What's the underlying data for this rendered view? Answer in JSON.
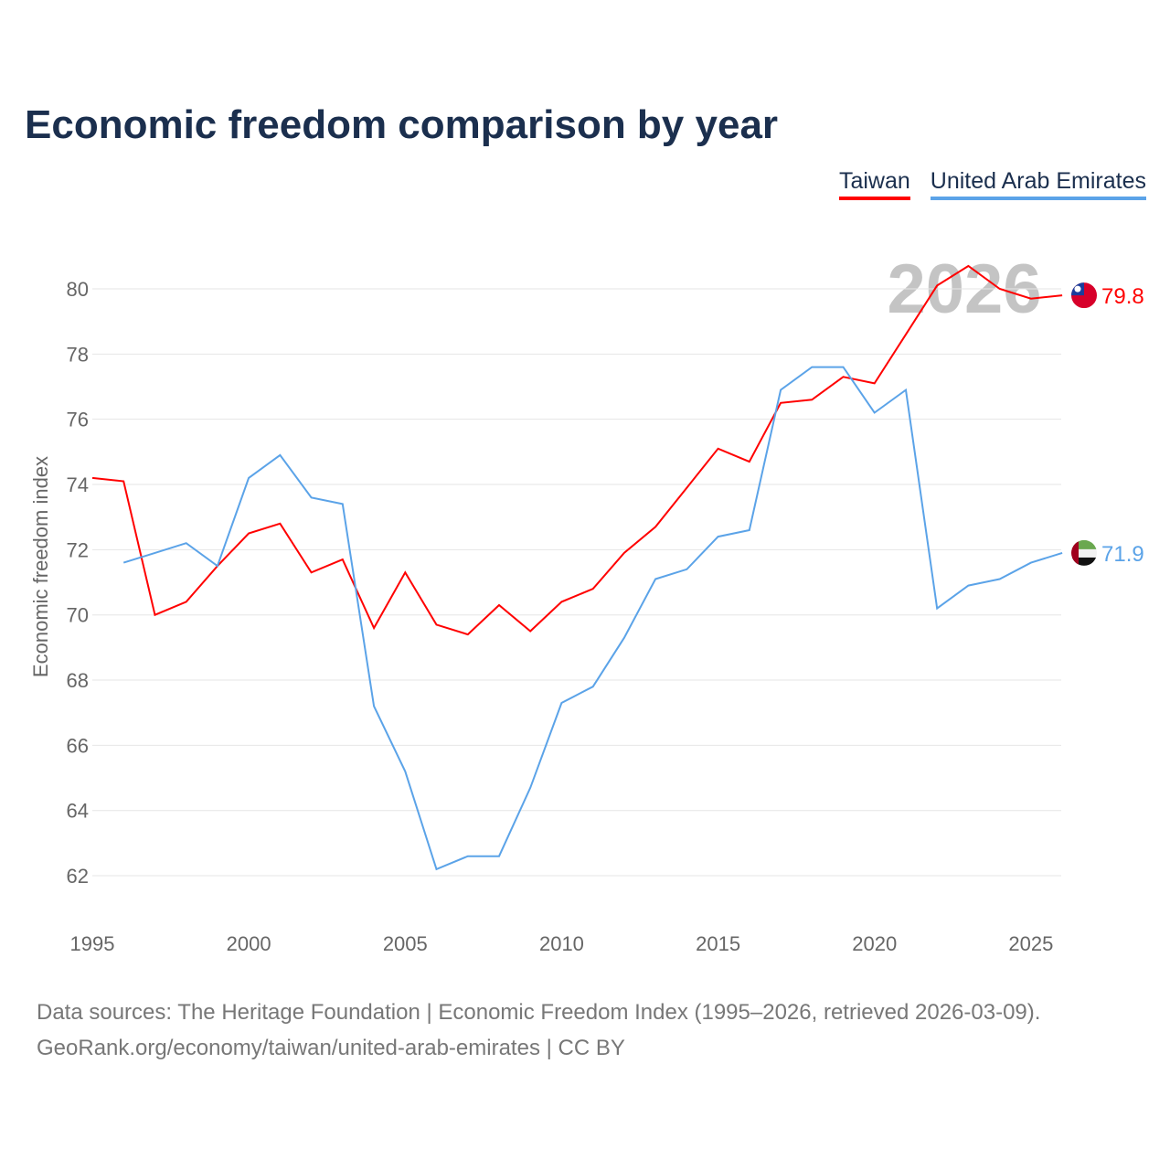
{
  "chart_data": {
    "type": "line",
    "title": "Economic freedom comparison by year",
    "ylabel": "Economic freedom index",
    "xlabel": "",
    "ylim": [
      61,
      81
    ],
    "xlim": [
      1995,
      2026
    ],
    "yticks": [
      62,
      64,
      66,
      68,
      70,
      72,
      74,
      76,
      78,
      80
    ],
    "xticks": [
      1995,
      2000,
      2005,
      2010,
      2015,
      2020,
      2025
    ],
    "grid": true,
    "legend_placement": "top-right",
    "year_label": "2026",
    "series": [
      {
        "name": "Taiwan",
        "color": "#ff0000",
        "end_label": "79.8",
        "x": [
          1995,
          1996,
          1997,
          1998,
          1999,
          2000,
          2001,
          2002,
          2003,
          2004,
          2005,
          2006,
          2007,
          2008,
          2009,
          2010,
          2011,
          2012,
          2013,
          2014,
          2015,
          2016,
          2017,
          2018,
          2019,
          2020,
          2021,
          2022,
          2023,
          2024,
          2025,
          2026
        ],
        "values": [
          74.2,
          74.1,
          70.0,
          70.4,
          71.5,
          72.5,
          72.8,
          71.3,
          71.7,
          69.6,
          71.3,
          69.7,
          69.4,
          70.3,
          69.5,
          70.4,
          70.8,
          71.9,
          72.7,
          73.9,
          75.1,
          74.7,
          76.5,
          76.6,
          77.3,
          77.1,
          78.6,
          80.1,
          80.7,
          80.0,
          79.7,
          79.8
        ]
      },
      {
        "name": "United Arab Emirates",
        "color": "#5ba3e8",
        "end_label": "71.9",
        "x": [
          1996,
          1997,
          1998,
          1999,
          2000,
          2001,
          2002,
          2003,
          2004,
          2005,
          2006,
          2007,
          2008,
          2009,
          2010,
          2011,
          2012,
          2013,
          2014,
          2015,
          2016,
          2017,
          2018,
          2019,
          2020,
          2021,
          2022,
          2023,
          2024,
          2025,
          2026
        ],
        "values": [
          71.6,
          71.9,
          72.2,
          71.5,
          74.2,
          74.9,
          73.6,
          73.4,
          67.2,
          65.2,
          62.2,
          62.6,
          62.6,
          64.7,
          67.3,
          67.8,
          69.3,
          71.1,
          71.4,
          72.4,
          72.6,
          76.9,
          77.6,
          77.6,
          76.2,
          76.9,
          70.2,
          70.9,
          71.1,
          71.6,
          71.9
        ]
      }
    ]
  },
  "source": {
    "line1": "Data sources: The Heritage Foundation | Economic Freedom Index (1995–2026, retrieved 2026-03-09).",
    "line2": "GeoRank.org/economy/taiwan/united-arab-emirates | CC BY"
  }
}
